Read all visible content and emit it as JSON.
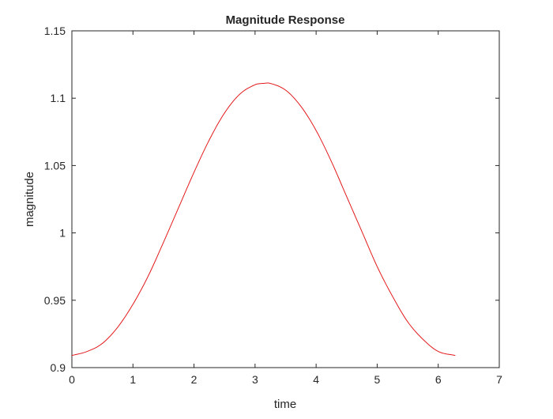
{
  "chart_data": {
    "type": "line",
    "title": "Magnitude Response",
    "xlabel": "time",
    "ylabel": "magnitude",
    "xlim": [
      0,
      7
    ],
    "ylim": [
      0.9,
      1.15
    ],
    "xticks": [
      0,
      1,
      2,
      3,
      4,
      5,
      6,
      7
    ],
    "xtick_labels": [
      "0",
      "1",
      "2",
      "3",
      "4",
      "5",
      "6",
      "7"
    ],
    "yticks": [
      0.9,
      0.95,
      1.0,
      1.05,
      1.1,
      1.15
    ],
    "ytick_labels": [
      "0.9",
      "0.95",
      "1",
      "1.05",
      "1.1",
      "1.15"
    ],
    "grid": false,
    "line_color": "#e31a1c",
    "series": [
      {
        "x": [
          0,
          0.25,
          0.5,
          0.75,
          1.0,
          1.25,
          1.5,
          1.75,
          2.0,
          2.25,
          2.5,
          2.75,
          3.0,
          3.14,
          3.25,
          3.5,
          3.75,
          4.0,
          4.25,
          4.5,
          4.75,
          5.0,
          5.25,
          5.5,
          5.75,
          6.0,
          6.28
        ],
        "y": [
          0.909,
          0.912,
          0.918,
          0.93,
          0.947,
          0.968,
          0.993,
          1.019,
          1.045,
          1.069,
          1.089,
          1.103,
          1.11,
          1.111,
          1.111,
          1.106,
          1.094,
          1.076,
          1.053,
          1.027,
          1.001,
          0.975,
          0.953,
          0.934,
          0.921,
          0.912,
          0.909
        ]
      }
    ]
  }
}
